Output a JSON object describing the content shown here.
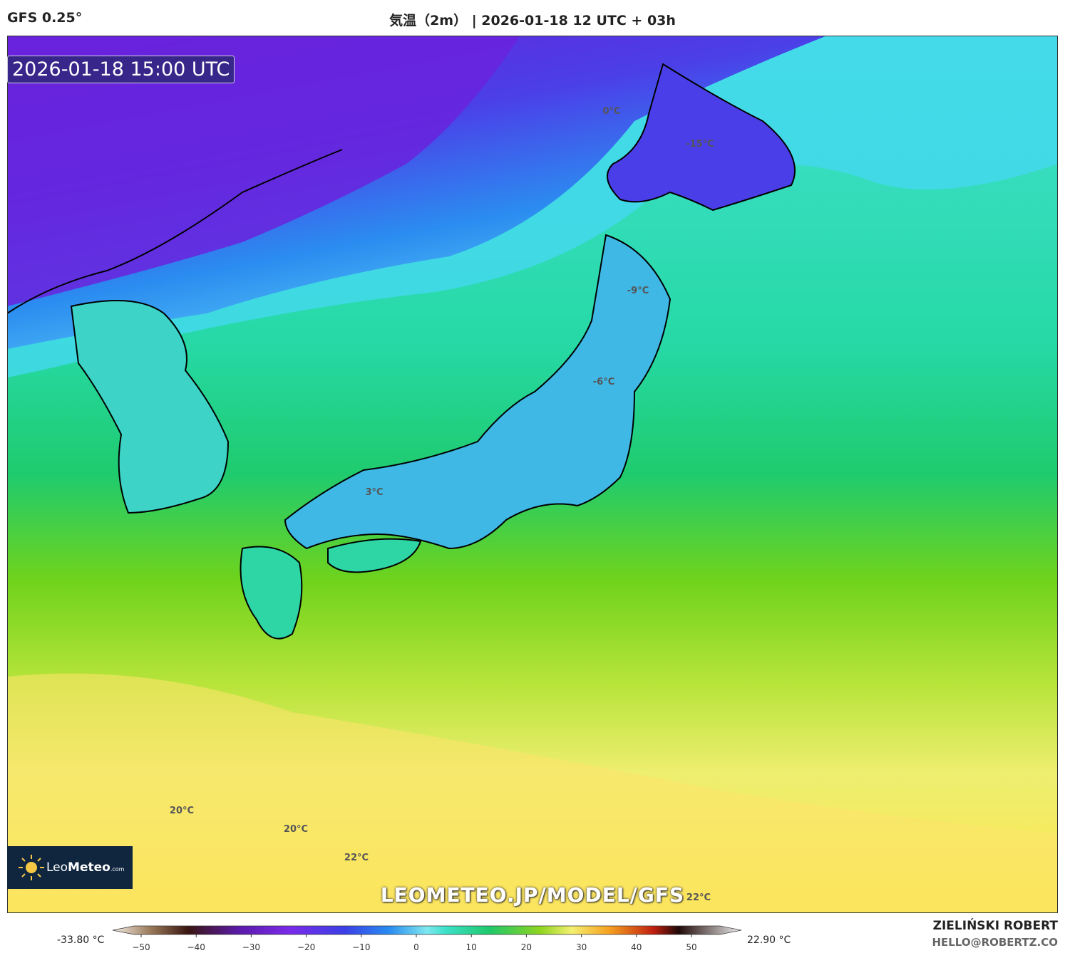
{
  "header": {
    "model": "GFS 0.25°",
    "title": "気温（2m） | 2026-01-18 12 UTC + 03h"
  },
  "map": {
    "valid_time": "2026-01-18 15:00 UTC",
    "contour_labels": [
      "0°C",
      "-15°C",
      "-9°C",
      "-6°C",
      "3°C",
      "20°C",
      "20°C",
      "22°C",
      "22°C"
    ],
    "watermark": "LEOMETEO.JP/MODEL/GFS",
    "logo": {
      "name": "Leo",
      "name_bold": "Meteo",
      "domain": ".com"
    }
  },
  "legend": {
    "min": "-33.80 °C",
    "max": "22.90 °C",
    "ticks": [
      "−50",
      "−40",
      "−30",
      "−20",
      "−10",
      "0",
      "10",
      "20",
      "30",
      "40",
      "50"
    ]
  },
  "footer": {
    "author": "ZIELIŃSKI ROBERT",
    "email": "HELLO@ROBERTZ.CO"
  }
}
